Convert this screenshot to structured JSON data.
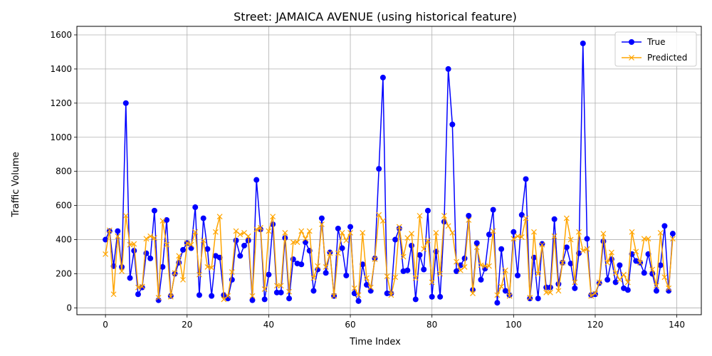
{
  "chart_data": {
    "type": "line",
    "title": "Street: JAMAICA AVENUE (using historical feature)",
    "xlabel": "Time Index",
    "ylabel": "Traffic Volume",
    "xlim": [
      -7,
      146
    ],
    "ylim": [
      -40,
      1650
    ],
    "xticks": [
      "0",
      "20",
      "40",
      "60",
      "80",
      "100",
      "120",
      "140"
    ],
    "yticks": [
      "0",
      "200",
      "400",
      "600",
      "800",
      "1000",
      "1200",
      "1400",
      "1600"
    ],
    "xtick_values": [
      0,
      20,
      40,
      60,
      80,
      100,
      120,
      140
    ],
    "ytick_values": [
      0,
      200,
      400,
      600,
      800,
      1000,
      1200,
      1400,
      1600
    ],
    "grid": true,
    "legend_position": "top-right",
    "colors": {
      "true": "#0000ff",
      "predicted": "#ffa500",
      "grid": "#b0b0b0"
    },
    "series": [
      {
        "name": "True",
        "marker": "circle",
        "values": [
          400,
          450,
          245,
          450,
          240,
          1200,
          175,
          335,
          80,
          120,
          320,
          290,
          570,
          45,
          240,
          515,
          70,
          200,
          265,
          340,
          380,
          350,
          590,
          75,
          525,
          345,
          70,
          305,
          295,
          75,
          55,
          165,
          395,
          305,
          365,
          395,
          45,
          750,
          460,
          50,
          195,
          490,
          90,
          90,
          410,
          55,
          285,
          260,
          255,
          385,
          335,
          100,
          225,
          525,
          205,
          325,
          70,
          465,
          350,
          190,
          475,
          85,
          40,
          255,
          135,
          100,
          290,
          815,
          1350,
          85,
          85,
          400,
          465,
          215,
          220,
          365,
          50,
          310,
          225,
          570,
          65,
          330,
          65,
          505,
          1400,
          1075,
          215,
          250,
          290,
          540,
          105,
          380,
          165,
          230,
          430,
          575,
          30,
          345,
          100,
          75,
          445,
          190,
          545,
          755,
          55,
          295,
          55,
          375,
          120,
          120,
          520,
          140,
          265,
          355,
          260,
          115,
          320,
          1550,
          405,
          75,
          80,
          145,
          390,
          165,
          285,
          150,
          250,
          115,
          105,
          315,
          275,
          265,
          205,
          315,
          200,
          100,
          250,
          480,
          100,
          435
        ]
      },
      {
        "name": "Predicted",
        "marker": "x",
        "values": [
          315,
          455,
          80,
          420,
          215,
          540,
          370,
          375,
          120,
          125,
          405,
          420,
          410,
          60,
          510,
          370,
          65,
          205,
          305,
          165,
          380,
          370,
          445,
          195,
          395,
          240,
          235,
          445,
          535,
          50,
          70,
          210,
          450,
          430,
          440,
          420,
          70,
          460,
          470,
          110,
          450,
          535,
          130,
          130,
          440,
          95,
          385,
          385,
          450,
          405,
          450,
          175,
          245,
          490,
          240,
          320,
          70,
          320,
          440,
          395,
          440,
          115,
          75,
          440,
          175,
          120,
          285,
          545,
          510,
          185,
          75,
          180,
          475,
          300,
          410,
          435,
          175,
          540,
          345,
          395,
          150,
          440,
          200,
          540,
          480,
          440,
          270,
          220,
          240,
          515,
          85,
          355,
          250,
          245,
          245,
          450,
          75,
          125,
          220,
          70,
          405,
          420,
          415,
          525,
          60,
          445,
          200,
          370,
          90,
          90,
          420,
          100,
          265,
          525,
          400,
          150,
          445,
          335,
          345,
          70,
          85,
          150,
          435,
          265,
          325,
          205,
          165,
          195,
          150,
          445,
          330,
          265,
          405,
          405,
          225,
          130,
          440,
          180,
          115,
          405
        ]
      }
    ]
  }
}
